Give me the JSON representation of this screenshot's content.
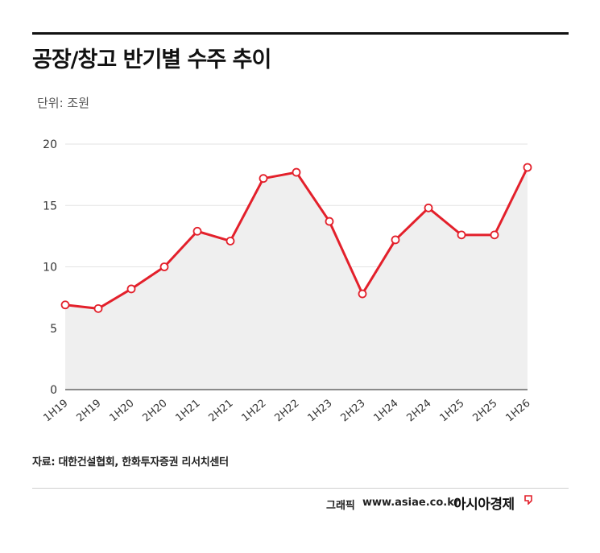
{
  "title": "공장/창고 반기별 수주 추이",
  "unit_label": "단위: 조원",
  "source": "자료: 대한건설협회, 한화투자증권 리서치센터",
  "credit": "그래픽",
  "site": "www.asiae.co.kr",
  "brand": "아시아경제",
  "colors": {
    "line": "#e3202b",
    "area": "#efefef",
    "grid": "#e3e3e3",
    "text": "#222222"
  },
  "chart_data": {
    "type": "area",
    "title": "공장/창고 반기별 수주 추이",
    "ylabel": "단위: 조원",
    "xlabel": "",
    "ylim": [
      0,
      20
    ],
    "yticks": [
      0,
      5,
      10,
      15,
      20
    ],
    "grid": true,
    "categories": [
      "1H19",
      "2H19",
      "1H20",
      "2H20",
      "1H21",
      "2H21",
      "1H22",
      "2H22",
      "1H23",
      "2H23",
      "1H24",
      "2H24",
      "1H25",
      "2H25",
      "1H26"
    ],
    "series": [
      {
        "values": [
          6.9,
          6.6,
          8.2,
          10.0,
          12.9,
          12.1,
          17.2,
          17.7,
          13.7,
          7.8,
          12.2,
          14.8,
          12.6,
          12.6,
          18.1
        ]
      }
    ]
  }
}
